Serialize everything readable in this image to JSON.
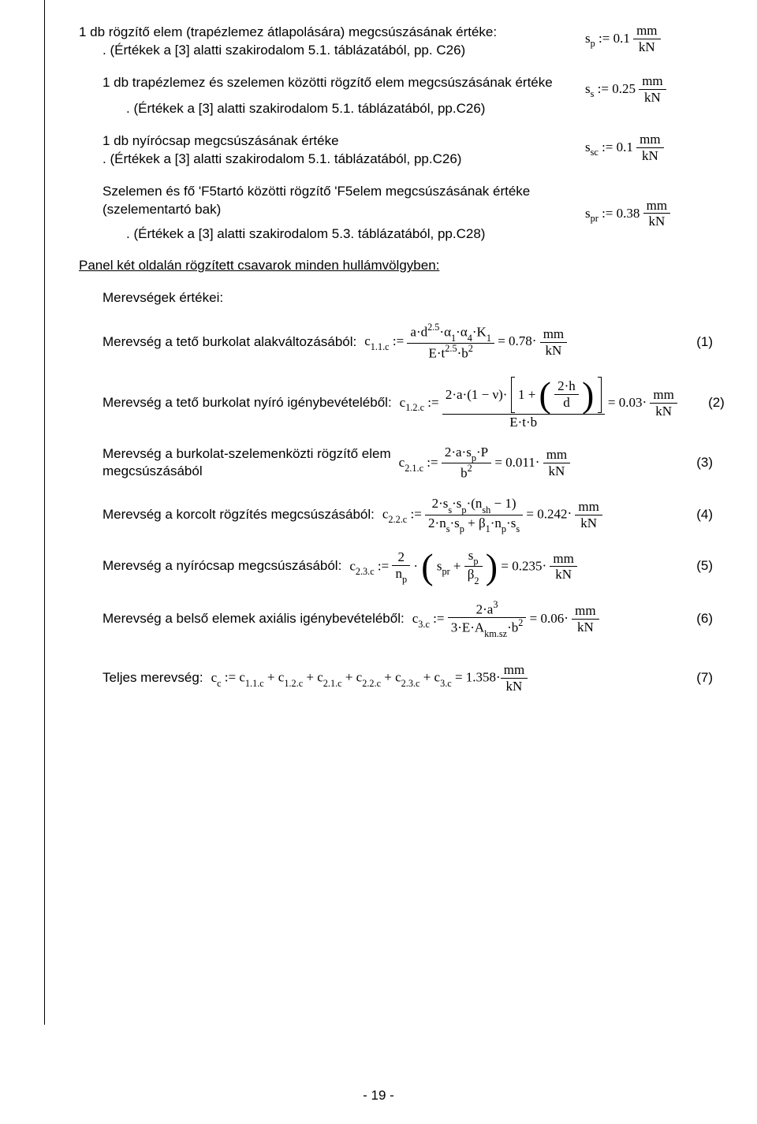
{
  "unit": {
    "mm": "mm",
    "kN": "kN"
  },
  "ops": {
    "assign": ":=",
    "eq": "=",
    "dot": "·",
    "plus": "+",
    "minus": "−"
  },
  "sp": {
    "label1": "1 db rögzítő elem (trapézlemez átlapolására) megcsúszásának értéke:",
    "note": ". (Értékek a [3] alatti szakirodalom 5.1. táblázatából, pp. C26)",
    "sym": "s",
    "sub": "p",
    "val": "0.1"
  },
  "ss": {
    "label": "1 db trapézlemez és szelemen közötti rögzítő elem megcsúszásának értéke",
    "note": ". (Értékek a [3] alatti szakirodalom 5.1. táblázatából, pp.C26)",
    "sym": "s",
    "sub": "s",
    "val": "0.25"
  },
  "ssc": {
    "label": "1 db nyírócsap megcsúszásának értéke",
    "note": ". (Értékek a [3] alatti szakirodalom 5.1. táblázatából, pp.C26)",
    "sym": "s",
    "sub": "sc",
    "val": "0.1"
  },
  "spr": {
    "label1": "Szelemen és fő 'F5tartó közötti rögzítő 'F5elem megcsúszásának értéke",
    "label2": "(szelementartó bak)",
    "note": ". (Értékek a [3] alatti szakirodalom 5.3. táblázatából, pp.C28)",
    "sym": "s",
    "sub": "pr",
    "val": "0.38"
  },
  "section": {
    "panel": "Panel két oldalán rögzített csavarok minden hullámvölgyben:",
    "stiffness_heading": "Merevségek értékei:"
  },
  "eq1": {
    "label": "Merevség a tető burkolat alakváltozásából:",
    "csym": "c",
    "csub": "1.1.c",
    "num": {
      "a": "a",
      "d": "d",
      "dexp": "2.5",
      "alpha1": "α",
      "a1sub": "1",
      "alpha4": "α",
      "a4sub": "4",
      "K": "K",
      "Ksub": "1"
    },
    "den": {
      "E": "E",
      "t": "t",
      "texp": "2.5",
      "b": "b",
      "bexp": "2"
    },
    "result": "0.78",
    "no": "(1)"
  },
  "eq2": {
    "label": "Merevség a tető burkolat nyíró igénybevételéből:",
    "csym": "c",
    "csub": "1.2.c",
    "lead": "2·a·(1 − ν)·",
    "inner_num": "2·h",
    "inner_den": "d",
    "one": "1",
    "den": "E·t·b",
    "result": "0.03",
    "no": "(2)"
  },
  "eq3": {
    "label1": "Merevség a burkolat-szelemenközti rögzítő elem",
    "label2": "megcsúszásából",
    "csym": "c",
    "csub": "2.1.c",
    "num": "2·a·s",
    "num_sub": "p",
    "num_tail": "·P",
    "den": "b",
    "den_exp": "2",
    "result": "0.011",
    "no": "(3)"
  },
  "eq4": {
    "label": "Merevség a korcolt rögzítés megcsúszásából:",
    "csym": "c",
    "csub": "2.2.c",
    "num": {
      "pre": "2·s",
      "s1": "s",
      "mid": "·s",
      "s2": "p",
      "open": "·(n",
      "nsh": "sh",
      "minus1": " − 1)"
    },
    "den": {
      "a": "2·n",
      "ns": "s",
      "b": "·s",
      "sp": "p",
      "plus": " + β",
      "b1": "1",
      "c": "·n",
      "np": "p",
      "d": "·s",
      "ss": "s"
    },
    "result": "0.242",
    "no": "(4)"
  },
  "eq5": {
    "label": "Merevség a nyírócsap megcsúszásából:",
    "csym": "c",
    "csub": "2.3.c",
    "lead_num": "2",
    "lead_den_n": "n",
    "lead_den_sub": "p",
    "spr": "s",
    "spr_sub": "pr",
    "inner_num": "s",
    "inner_num_sub": "p",
    "inner_den": "β",
    "inner_den_sub": "2",
    "result": "0.235",
    "no": "(5)"
  },
  "eq6": {
    "label": "Merevség a belső  elemek axiális igénybevételéből:",
    "csym": "c",
    "csub": "3.c",
    "num": "2·a",
    "num_exp": "3",
    "den_a": "3·E·A",
    "den_sub": "km.sz",
    "den_b": "·b",
    "den_exp": "2",
    "result": "0.06",
    "no": "(6)"
  },
  "total": {
    "label": "Teljes merevség:",
    "lhs_sym": "c",
    "lhs_sub": "c",
    "terms": [
      "1.1.c",
      "1.2.c",
      "2.1.c",
      "2.2.c",
      "2.3.c",
      "3.c"
    ],
    "c": "c",
    "plus": " + ",
    "result": "1.358",
    "no": "(7)"
  },
  "page": {
    "num": "- 19 -"
  }
}
